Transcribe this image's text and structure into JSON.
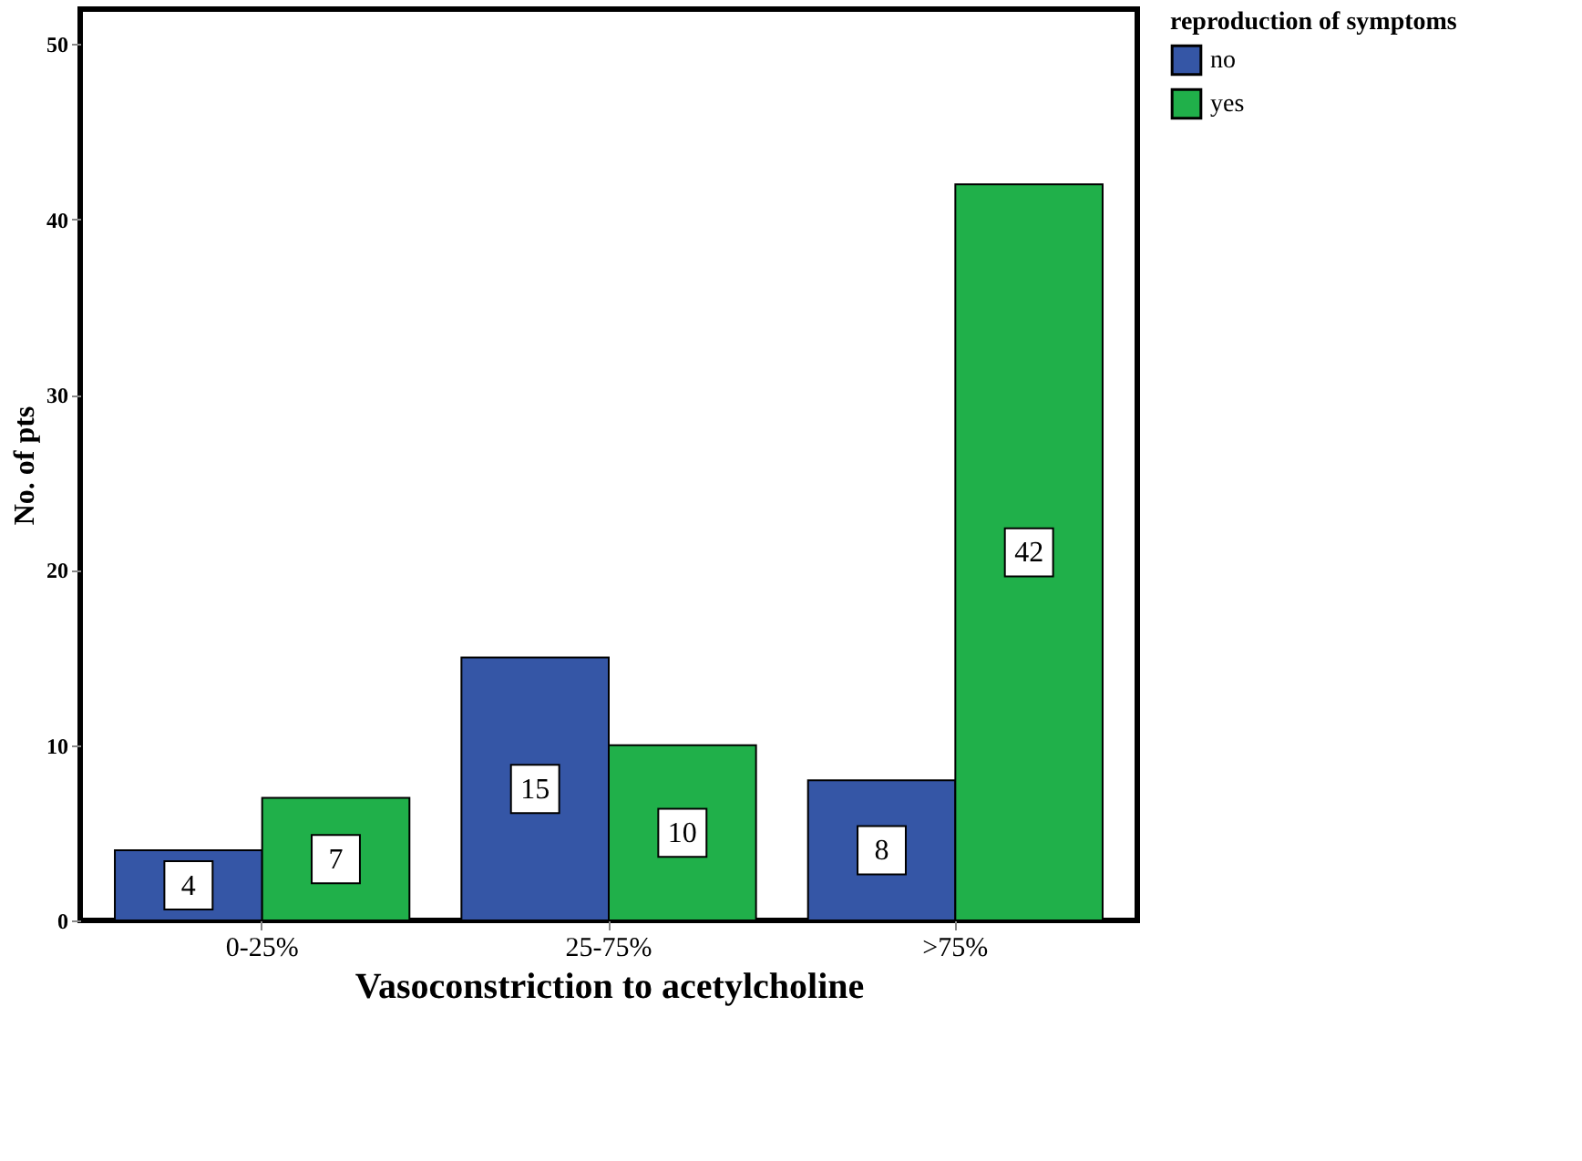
{
  "chart_data": {
    "type": "bar",
    "xlabel": "Vasoconstriction to acetylcholine",
    "ylabel": "No. of pts",
    "legend_title": "reproduction of symptoms",
    "categories": [
      "0-25%",
      "25-75%",
      ">75%"
    ],
    "series": [
      {
        "name": "no",
        "color": "#3556a6",
        "values": [
          4,
          15,
          8
        ]
      },
      {
        "name": "yes",
        "color": "#20b04a",
        "values": [
          7,
          10,
          42
        ]
      }
    ],
    "ylim": [
      0,
      52
    ],
    "yticks": [
      0,
      10,
      20,
      30,
      40,
      50
    ],
    "data_labels": true,
    "grid": false,
    "legend": "top right"
  }
}
